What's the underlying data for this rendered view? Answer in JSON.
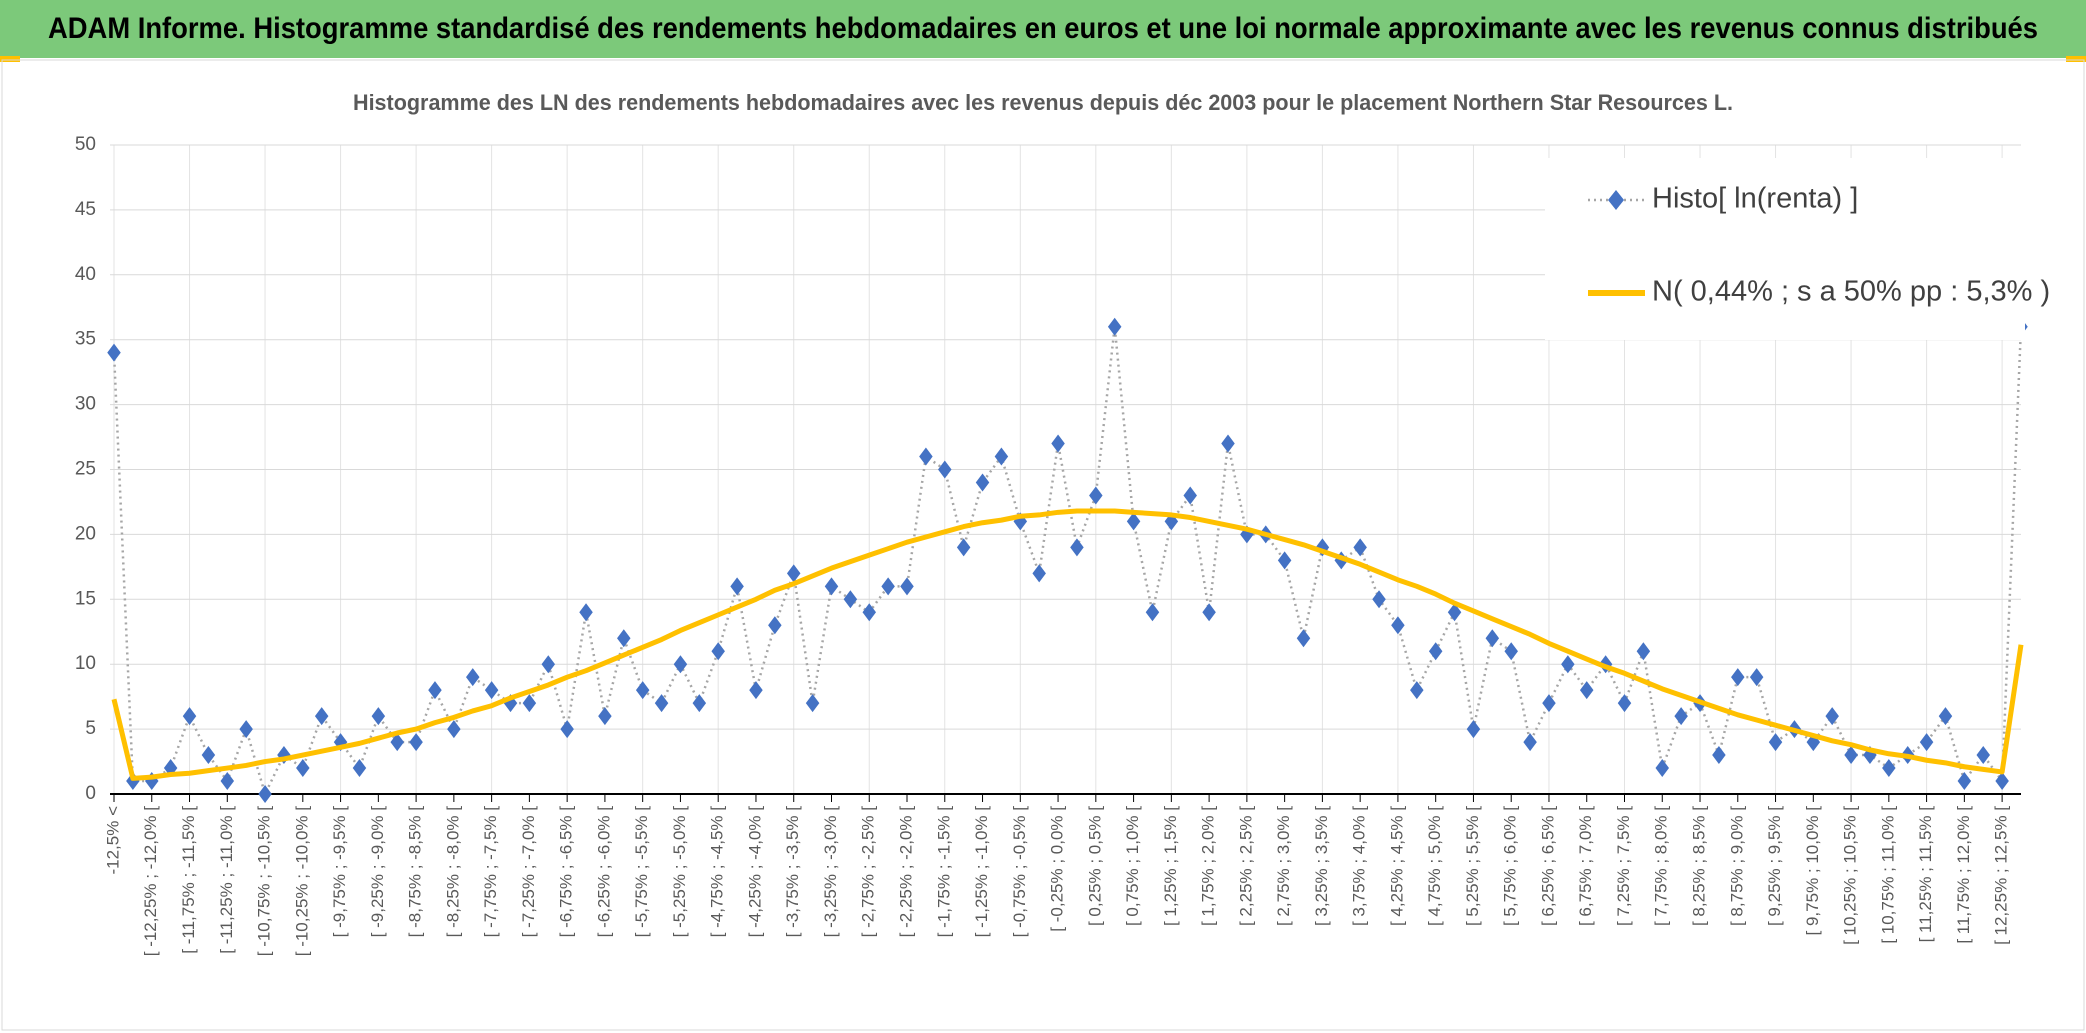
{
  "chart_data": {
    "type": "line",
    "header": "ADAM Informe. Histogramme standardisé des rendements hebdomadaires en euros et une loi normale approximante avec les revenus connus distribués",
    "title": "Histogramme des LN des rendements hebdomadaires avec les revenus depuis déc 2003 pour le placement Northern Star Resources L.",
    "categories": [
      "-12,5% <",
      null,
      "[ -12,25% ; -12,0% [",
      null,
      "[ -11,75% ; -11,5% [",
      null,
      "[ -11,25% ; -11,0% [",
      null,
      "[ -10,75% ; -10,5% [",
      null,
      "[ -10,25% ; -10,0% [",
      null,
      "[ -9,75% ; -9,5% [",
      null,
      "[ -9,25% ; -9,0% [",
      null,
      "[ -8,75% ; -8,5% [",
      null,
      "[ -8,25% ; -8,0% [",
      null,
      "[ -7,75% ; -7,5% [",
      null,
      "[ -7,25% ; -7,0% [",
      null,
      "[ -6,75% ; -6,5% [",
      null,
      "[ -6,25% ; -6,0% [",
      null,
      "[ -5,75% ; -5,5% [",
      null,
      "[ -5,25% ; -5,0% [",
      null,
      "[ -4,75% ; -4,5% [",
      null,
      "[ -4,25% ; -4,0% [",
      null,
      "[ -3,75% ; -3,5% [",
      null,
      "[ -3,25% ; -3,0% [",
      null,
      "[ -2,75% ; -2,5% [",
      null,
      "[ -2,25% ; -2,0% [",
      null,
      "[ -1,75% ; -1,5% [",
      null,
      "[ -1,25% ; -1,0% [",
      null,
      "[ -0,75% ; -0,5% [",
      null,
      "[ -0,25% ; 0,0% [",
      null,
      "[ 0,25% ; 0,5% [",
      null,
      "[ 0,75% ; 1,0% [",
      null,
      "[ 1,25% ; 1,5% [",
      null,
      "[ 1,75% ; 2,0% [",
      null,
      "[ 2,25% ; 2,5% [",
      null,
      "[ 2,75% ; 3,0% [",
      null,
      "[ 3,25% ; 3,5% [",
      null,
      "[ 3,75% ; 4,0% [",
      null,
      "[ 4,25% ; 4,5% [",
      null,
      "[ 4,75% ; 5,0% [",
      null,
      "[ 5,25% ; 5,5% [",
      null,
      "[ 5,75% ; 6,0% [",
      null,
      "[ 6,25% ; 6,5% [",
      null,
      "[ 6,75% ; 7,0% [",
      null,
      "[ 7,25% ; 7,5% [",
      null,
      "[ 7,75% ; 8,0% [",
      null,
      "[ 8,25% ; 8,5% [",
      null,
      "[ 8,75% ; 9,0% [",
      null,
      "[ 9,25% ; 9,5% [",
      null,
      "[ 9,75% ; 10,0% [",
      null,
      "[ 10,25% ; 10,5% [",
      null,
      "[ 10,75% ; 11,0% [",
      null,
      "[ 11,25% ; 11,5% [",
      null,
      "[ 11,75% ; 12,0% [",
      null,
      "[ 12,25% ; 12,5% [",
      null
    ],
    "series": [
      {
        "name": "Histo[ ln(renta) ]",
        "color": "#4472c4",
        "style": "markers",
        "values": [
          34,
          1,
          1,
          2,
          6,
          3,
          1,
          5,
          0,
          3,
          2,
          6,
          4,
          2,
          6,
          4,
          4,
          8,
          5,
          9,
          8,
          7,
          7,
          10,
          5,
          14,
          6,
          12,
          8,
          7,
          10,
          7,
          11,
          16,
          8,
          13,
          17,
          7,
          16,
          15,
          14,
          16,
          16,
          26,
          25,
          19,
          24,
          26,
          21,
          17,
          27,
          19,
          23,
          36,
          21,
          14,
          21,
          23,
          14,
          27,
          20,
          20,
          18,
          12,
          19,
          18,
          19,
          15,
          13,
          8,
          11,
          14,
          5,
          12,
          11,
          4,
          7,
          10,
          8,
          10,
          7,
          11,
          2,
          6,
          7,
          3,
          9,
          9,
          4,
          5,
          4,
          6,
          3,
          3,
          2,
          3,
          4,
          6,
          1,
          3,
          1,
          36
        ]
      },
      {
        "name": "N( 0,44% ; s a 50% pp : 5,3% )",
        "color": "#ffc000",
        "style": "line",
        "values": [
          7.3,
          1.2,
          1.3,
          1.5,
          1.6,
          1.8,
          2.0,
          2.2,
          2.5,
          2.7,
          3.0,
          3.3,
          3.6,
          3.9,
          4.3,
          4.7,
          5.0,
          5.5,
          5.9,
          6.4,
          6.8,
          7.4,
          7.9,
          8.4,
          9.0,
          9.5,
          10.1,
          10.7,
          11.3,
          11.9,
          12.6,
          13.2,
          13.8,
          14.4,
          15.0,
          15.7,
          16.2,
          16.8,
          17.4,
          17.9,
          18.4,
          18.9,
          19.4,
          19.8,
          20.2,
          20.6,
          20.9,
          21.1,
          21.4,
          21.5,
          21.7,
          21.8,
          21.8,
          21.8,
          21.7,
          21.6,
          21.5,
          21.3,
          21.0,
          20.7,
          20.4,
          20.0,
          19.6,
          19.2,
          18.7,
          18.2,
          17.7,
          17.1,
          16.5,
          16.0,
          15.4,
          14.7,
          14.1,
          13.5,
          12.9,
          12.3,
          11.6,
          11.0,
          10.4,
          9.8,
          9.3,
          8.7,
          8.1,
          7.6,
          7.1,
          6.6,
          6.1,
          5.7,
          5.3,
          4.9,
          4.5,
          4.1,
          3.8,
          3.4,
          3.1,
          2.9,
          2.6,
          2.4,
          2.1,
          1.9,
          1.7,
          11.5
        ]
      }
    ],
    "ylim": [
      0,
      50
    ],
    "yticks": [
      0,
      5,
      10,
      15,
      20,
      25,
      30,
      35,
      40,
      45,
      50
    ],
    "grid": true,
    "legend": "upper right"
  }
}
